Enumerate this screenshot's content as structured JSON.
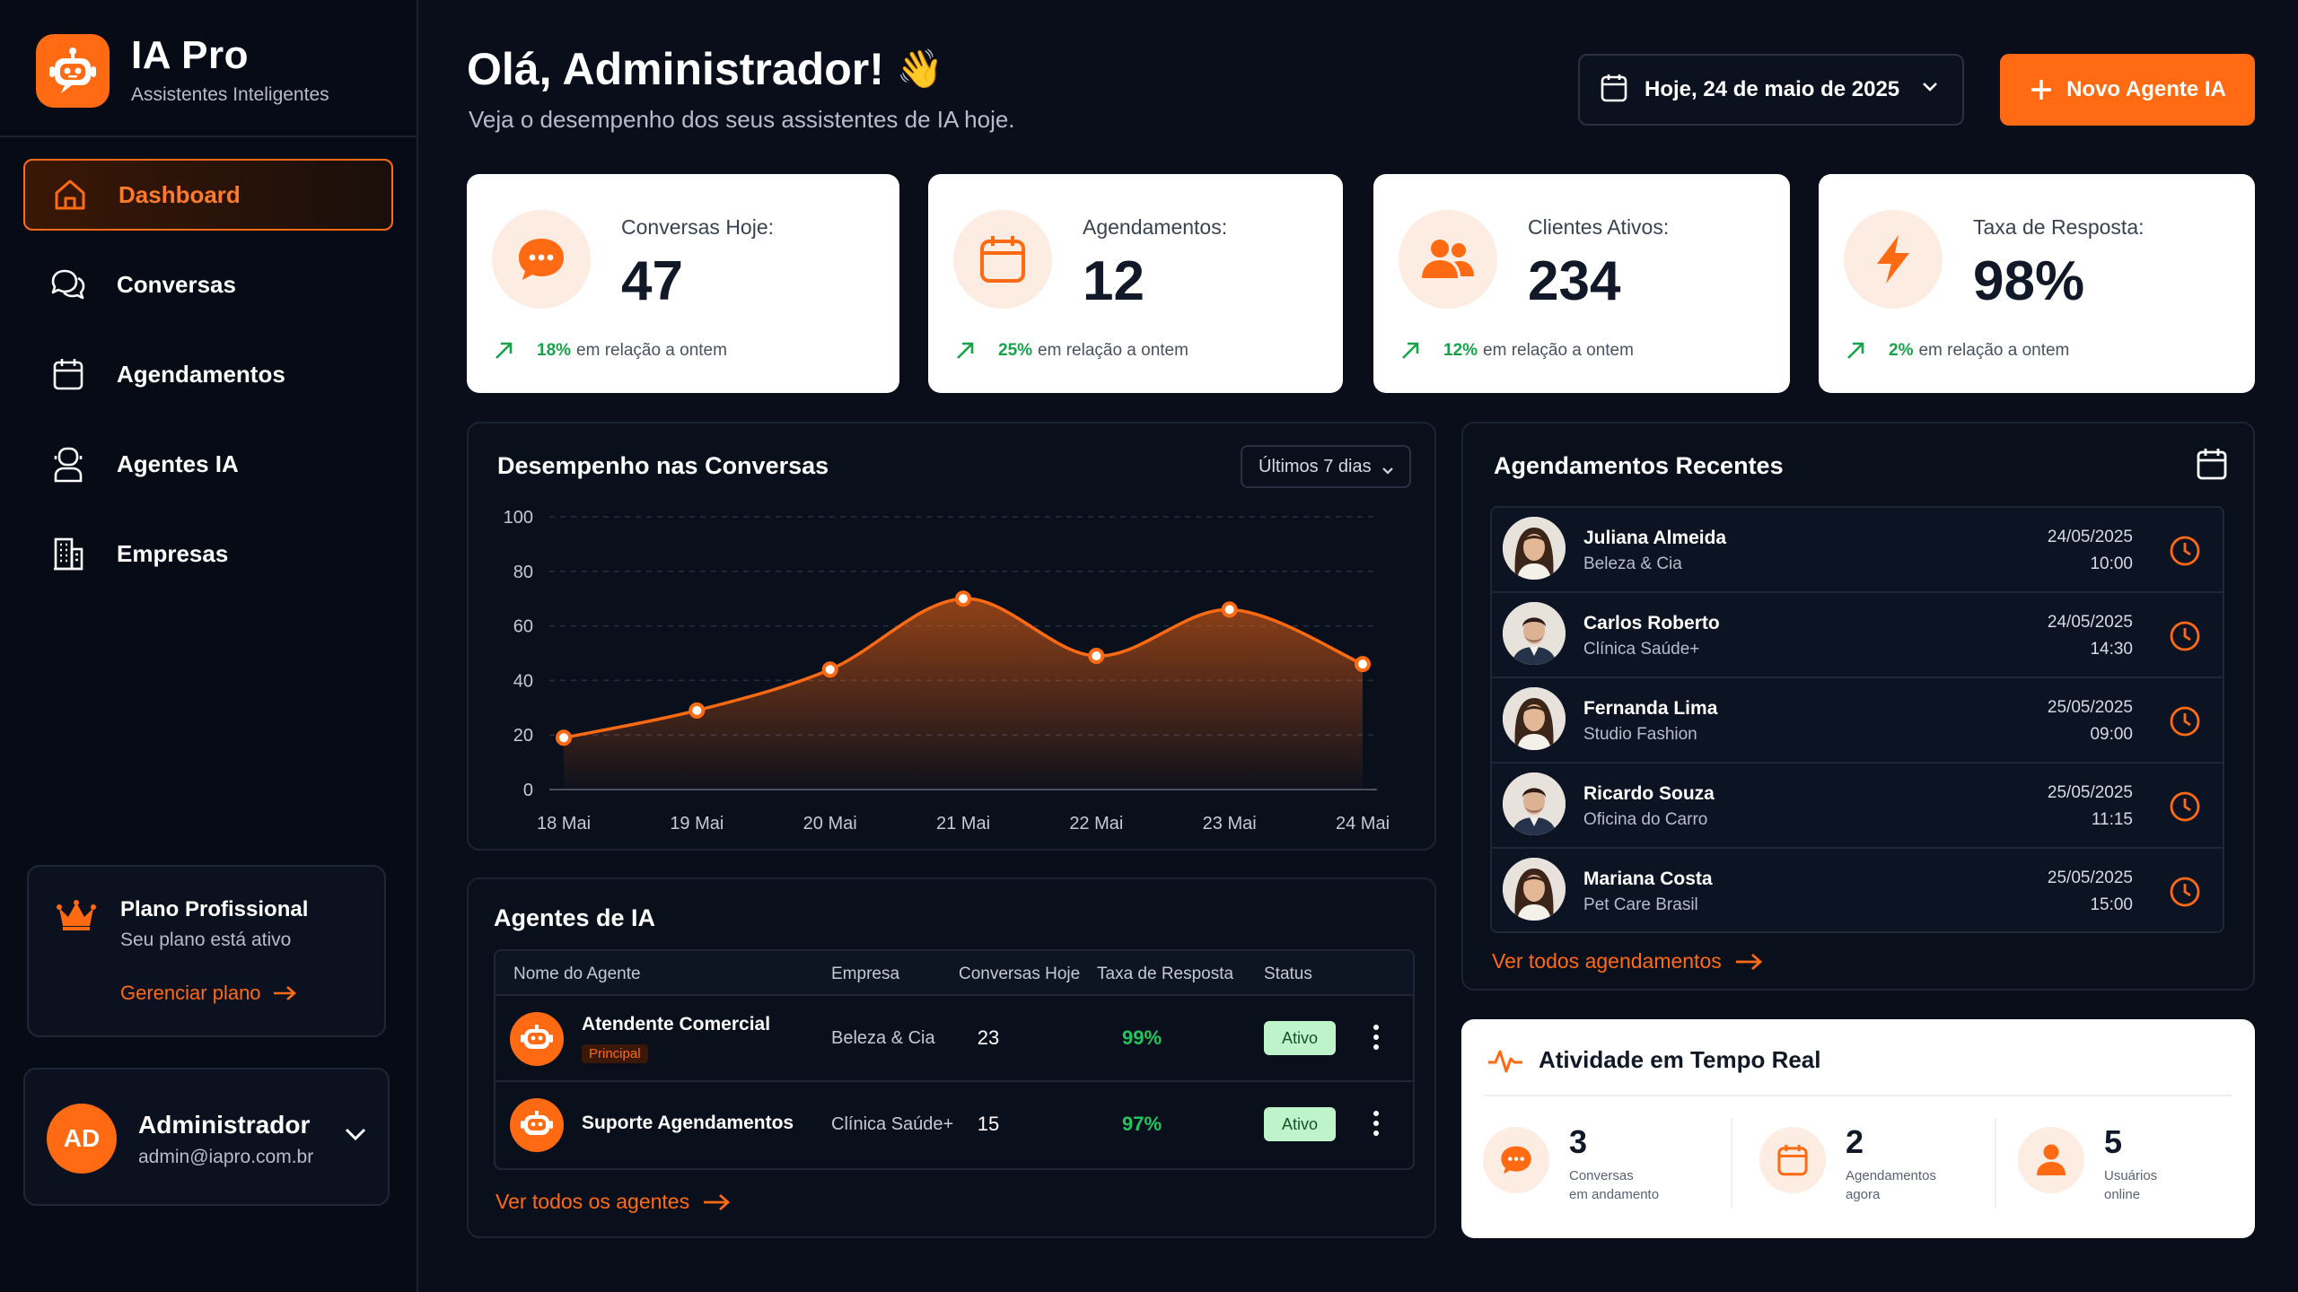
{
  "brand": {
    "title": "IA Pro",
    "subtitle": "Assistentes Inteligentes"
  },
  "sidebar": {
    "items": [
      {
        "label": "Dashboard",
        "icon": "home-icon",
        "active": true
      },
      {
        "label": "Conversas",
        "icon": "chat-icon"
      },
      {
        "label": "Agendamentos",
        "icon": "calendar-icon"
      },
      {
        "label": "Agentes IA",
        "icon": "agent-icon"
      },
      {
        "label": "Empresas",
        "icon": "building-icon"
      }
    ],
    "plan": {
      "title": "Plano Profissional",
      "subtitle": "Seu plano está ativo",
      "link": "Gerenciar plano"
    },
    "user": {
      "initials": "AD",
      "name": "Administrador",
      "email": "admin@iapro.com.br"
    }
  },
  "header": {
    "greeting": "Olá, Administrador!",
    "emoji": "👋",
    "subtitle": "Veja o desempenho dos seus assistentes de IA hoje.",
    "date_label": "Hoje, 24 de maio de 2025",
    "new_button": "Novo Agente IA"
  },
  "stats": [
    {
      "label": "Conversas Hoje:",
      "value": "47",
      "pct": "18%",
      "trend": "em relação a ontem",
      "icon": "chat-bubble-icon"
    },
    {
      "label": "Agendamentos:",
      "value": "12",
      "pct": "25%",
      "trend": "em relação a ontem",
      "icon": "calendar-icon"
    },
    {
      "label": "Clientes Ativos:",
      "value": "234",
      "pct": "12%",
      "trend": "em relação a ontem",
      "icon": "users-icon"
    },
    {
      "label": "Taxa de Resposta:",
      "value": "98%",
      "pct": "2%",
      "trend": "em relação a ontem",
      "icon": "bolt-icon"
    }
  ],
  "performance": {
    "title": "Desempenho nas Conversas",
    "range": "Últimos 7 dias"
  },
  "chart_data": {
    "type": "area",
    "title": "Desempenho nas Conversas",
    "x": [
      "18 Mai",
      "19 Mai",
      "20 Mai",
      "21 Mai",
      "22 Mai",
      "23 Mai",
      "24 Mai"
    ],
    "y_ticks": [
      "100",
      "80",
      "60",
      "40",
      "20",
      "0"
    ],
    "values": [
      19,
      29,
      44,
      70,
      49,
      66,
      46
    ],
    "ylim": [
      0,
      100
    ],
    "grid": true,
    "color": "#ff6a13"
  },
  "agents": {
    "title": "Agentes de IA",
    "columns": [
      "Nome do Agente",
      "Empresa",
      "Conversas Hoje",
      "Taxa de Resposta",
      "Status"
    ],
    "rows": [
      {
        "name": "Atendente Comercial",
        "tag": "Principal",
        "company": "Beleza & Cia",
        "conversations": "23",
        "rate": "99%",
        "status": "Ativo"
      },
      {
        "name": "Suporte Agendamentos",
        "tag": "",
        "company": "Clínica Saúde+",
        "conversations": "15",
        "rate": "97%",
        "status": "Ativo"
      }
    ],
    "link": "Ver todos os agentes"
  },
  "appointments": {
    "title": "Agendamentos Recentes",
    "rows": [
      {
        "name": "Juliana Almeida",
        "company": "Beleza & Cia",
        "date": "24/05/2025",
        "time": "10:00",
        "gender": "f"
      },
      {
        "name": "Carlos Roberto",
        "company": "Clínica Saúde+",
        "date": "24/05/2025",
        "time": "14:30",
        "gender": "m"
      },
      {
        "name": "Fernanda Lima",
        "company": "Studio Fashion",
        "date": "25/05/2025",
        "time": "09:00",
        "gender": "f"
      },
      {
        "name": "Ricardo Souza",
        "company": "Oficina do Carro",
        "date": "25/05/2025",
        "time": "11:15",
        "gender": "m"
      },
      {
        "name": "Mariana Costa",
        "company": "Pet Care Brasil",
        "date": "25/05/2025",
        "time": "15:00",
        "gender": "f"
      }
    ],
    "link": "Ver todos agendamentos"
  },
  "realtime": {
    "title": "Atividade em Tempo Real",
    "items": [
      {
        "number": "3",
        "label1": "Conversas",
        "label2": "em andamento",
        "icon": "chat-bubble-icon"
      },
      {
        "number": "2",
        "label1": "Agendamentos",
        "label2": "agora",
        "icon": "calendar-icon"
      },
      {
        "number": "5",
        "label1": "Usuários",
        "label2": "online",
        "icon": "user-icon"
      }
    ]
  },
  "colors": {
    "accent": "#ff6a13",
    "background": "#0a0e1a",
    "positive": "#16a34a"
  }
}
